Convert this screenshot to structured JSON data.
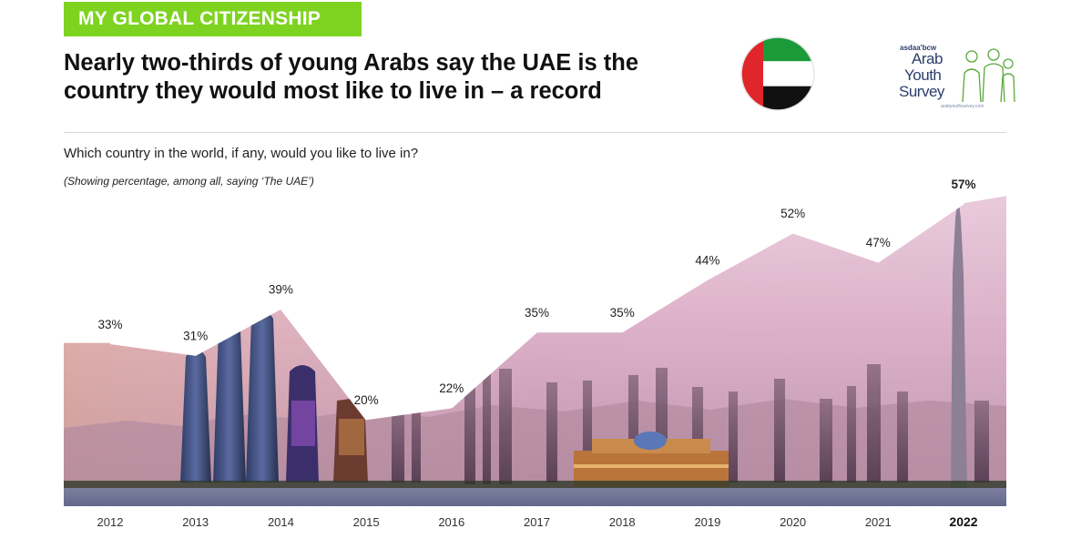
{
  "section_badge": "MY GLOBAL CITIZENSHIP",
  "headline_line1": "Nearly two-thirds of young Arabs say the UAE is the",
  "headline_line2": "country they would most like to live in – a record",
  "logo": {
    "brand_small": "asdaa'bcw",
    "words": [
      "Arab",
      "Youth",
      "Survey"
    ],
    "url": "arabyouthsurvey.com"
  },
  "question": "Which country in the world, if any, would you like to live in?",
  "note": "(Showing percentage, among all, saying ‘The UAE’)",
  "colors": {
    "badge": "#7ed321",
    "flag_red": "#e0262b",
    "flag_green": "#1b9a3a",
    "flag_black": "#111111"
  },
  "chart_data": {
    "type": "area",
    "title": "",
    "xlabel": "",
    "ylabel": "",
    "categories": [
      "2012",
      "2013",
      "2014",
      "2015",
      "2016",
      "2017",
      "2018",
      "2019",
      "2020",
      "2021",
      "2022"
    ],
    "value_labels": [
      "33%",
      "31%",
      "39%",
      "20%",
      "22%",
      "35%",
      "35%",
      "44%",
      "52%",
      "47%",
      "57%"
    ],
    "series": [
      {
        "values": [
          33,
          31,
          39,
          20,
          22,
          35,
          35,
          44,
          52,
          47,
          57
        ]
      }
    ],
    "highlight_category": "2022",
    "ylim": [
      0,
      60
    ],
    "grid": false
  }
}
